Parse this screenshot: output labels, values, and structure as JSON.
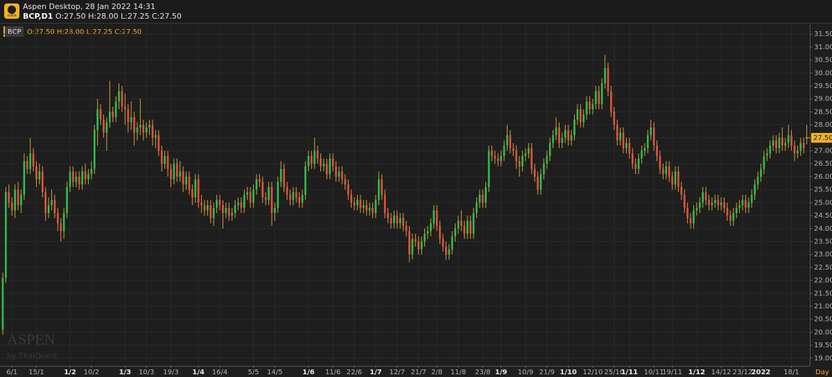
{
  "app_title": "Aspen Desktop, 28 Jan 2022 14:31",
  "symbol_header": "BCP,D1",
  "ohlc_header": "O:27.50 H:28.00 L:27.25 C:27.50",
  "logo_text": "ASPEN",
  "watermark": {
    "brand": "ASPEN",
    "sub": "by ThaiQuest"
  },
  "chart_data": {
    "type": "candlestick",
    "legend": {
      "symbol": "BCP",
      "ohlc": "O:27.50 H:28.00 L:27.25 C:27.50"
    },
    "last_price": {
      "value": 27.5,
      "label": "27.50"
    },
    "period": "Day",
    "up_color": "#2fbf4a",
    "down_color": "#e5533f",
    "wick_color": "#d8a43a",
    "grid": true,
    "ylim": [
      18.7,
      31.8
    ],
    "yticks": [
      {
        "value": 19,
        "label": "19.00"
      },
      {
        "value": 19.5,
        "label": "19.50"
      },
      {
        "value": 20,
        "label": "20.00"
      },
      {
        "value": 20.5,
        "label": "20.50"
      },
      {
        "value": 21,
        "label": "21.00"
      },
      {
        "value": 21.5,
        "label": "21.50"
      },
      {
        "value": 22,
        "label": "22.00"
      },
      {
        "value": 22.5,
        "label": "22.50"
      },
      {
        "value": 23,
        "label": "23.00"
      },
      {
        "value": 23.5,
        "label": "23.50"
      },
      {
        "value": 24,
        "label": "24.00"
      },
      {
        "value": 24.5,
        "label": "24.50"
      },
      {
        "value": 25,
        "label": "25.00"
      },
      {
        "value": 25.5,
        "label": "25.50"
      },
      {
        "value": 26,
        "label": "26.00"
      },
      {
        "value": 26.5,
        "label": "26.50"
      },
      {
        "value": 27,
        "label": "27.00"
      },
      {
        "value": 27.5,
        "label": "27.50"
      },
      {
        "value": 28,
        "label": "28.00"
      },
      {
        "value": 28.5,
        "label": "28.50"
      },
      {
        "value": 29,
        "label": "29.00"
      },
      {
        "value": 29.5,
        "label": "29.50"
      },
      {
        "value": 30,
        "label": "30.00"
      },
      {
        "value": 30.5,
        "label": "30.50"
      },
      {
        "value": 31,
        "label": "31.00"
      },
      {
        "value": 31.5,
        "label": "31.50"
      }
    ],
    "categories": [
      null,
      null,
      null,
      "6/1",
      null,
      null,
      null,
      null,
      null,
      null,
      null,
      "15/1",
      null,
      null,
      null,
      null,
      null,
      null,
      null,
      null,
      null,
      null,
      "1/2",
      null,
      null,
      null,
      null,
      null,
      null,
      "10/2",
      null,
      null,
      null,
      null,
      null,
      null,
      null,
      null,
      null,
      null,
      "1/3",
      null,
      null,
      null,
      null,
      null,
      null,
      "10/3",
      null,
      null,
      null,
      null,
      null,
      null,
      null,
      "19/3",
      null,
      null,
      null,
      null,
      null,
      null,
      null,
      null,
      "1/4",
      null,
      null,
      null,
      null,
      null,
      null,
      "16/4",
      null,
      null,
      null,
      null,
      null,
      null,
      null,
      null,
      null,
      null,
      "5/5",
      null,
      null,
      null,
      null,
      null,
      null,
      "14/5",
      null,
      null,
      null,
      null,
      null,
      null,
      null,
      null,
      null,
      null,
      "1/6",
      null,
      null,
      null,
      null,
      null,
      null,
      null,
      "11/6",
      null,
      null,
      null,
      null,
      null,
      null,
      "22/6",
      null,
      null,
      null,
      null,
      null,
      null,
      "1/7",
      null,
      null,
      null,
      null,
      null,
      null,
      "12/7",
      null,
      null,
      null,
      null,
      null,
      null,
      "21/7",
      null,
      null,
      null,
      null,
      null,
      "2/8",
      null,
      null,
      null,
      null,
      null,
      null,
      "11/8",
      null,
      null,
      null,
      null,
      null,
      null,
      null,
      "23/8",
      null,
      null,
      null,
      null,
      null,
      "1/9",
      null,
      null,
      null,
      null,
      null,
      null,
      null,
      "10/9",
      null,
      null,
      null,
      null,
      null,
      null,
      "21/9",
      null,
      null,
      null,
      null,
      null,
      null,
      "1/10",
      null,
      null,
      null,
      null,
      null,
      null,
      null,
      "12/10",
      null,
      null,
      null,
      null,
      null,
      null,
      "25/10",
      null,
      null,
      null,
      null,
      "1/11",
      null,
      null,
      null,
      null,
      null,
      null,
      null,
      "10/11",
      null,
      null,
      null,
      null,
      null,
      "19/11",
      null,
      null,
      null,
      null,
      null,
      null,
      null,
      "1/12",
      null,
      null,
      null,
      null,
      null,
      null,
      null,
      "14/12",
      null,
      null,
      null,
      null,
      null,
      null,
      "23/12",
      null,
      null,
      null,
      null,
      null,
      "2022",
      null,
      null,
      null,
      null,
      null,
      null,
      null,
      null,
      null,
      "18/1",
      null,
      null,
      null,
      null,
      null
    ],
    "open": [
      20.1,
      22.1,
      25.4,
      25.0,
      24.7,
      25.5,
      24.9,
      25.3,
      26.6,
      26.3,
      26.9,
      26.4,
      25.9,
      26.2,
      25.4,
      24.6,
      24.9,
      25.1,
      24.6,
      24.2,
      23.9,
      24.6,
      25.6,
      26.2,
      25.8,
      26.0,
      25.7,
      26.2,
      25.9,
      26.1,
      26.3,
      27.8,
      28.6,
      28.2,
      27.7,
      28.1,
      28.5,
      28.3,
      28.9,
      29.3,
      28.7,
      28.6,
      28.1,
      28.3,
      27.7,
      27.9,
      28.0,
      27.7,
      27.9,
      28.0,
      27.5,
      27.6,
      27.0,
      26.5,
      26.8,
      26.3,
      25.9,
      26.5,
      26.0,
      26.2,
      25.7,
      26.0,
      25.5,
      25.2,
      25.9,
      25.0,
      24.9,
      24.7,
      24.9,
      24.4,
      24.8,
      25.1,
      24.9,
      24.6,
      24.8,
      24.5,
      24.6,
      24.9,
      25.0,
      24.8,
      25.3,
      25.4,
      25.0,
      25.5,
      25.9,
      25.8,
      25.2,
      25.1,
      25.6,
      24.6,
      24.8,
      25.8,
      26.3,
      25.6,
      25.3,
      25.1,
      25.4,
      25.2,
      25.0,
      25.3,
      26.4,
      26.8,
      26.5,
      27.0,
      26.7,
      26.4,
      26.5,
      26.1,
      26.7,
      26.4,
      26.0,
      26.2,
      25.9,
      25.7,
      25.3,
      25.0,
      24.9,
      25.1,
      24.8,
      24.9,
      24.7,
      24.8,
      24.6,
      25.1,
      25.9,
      25.3,
      24.6,
      24.4,
      24.2,
      24.5,
      24.2,
      24.4,
      24.1,
      23.9,
      23.0,
      23.6,
      23.5,
      23.2,
      23.5,
      23.8,
      23.9,
      24.2,
      24.7,
      24.1,
      23.6,
      23.3,
      23.0,
      23.2,
      23.7,
      24.0,
      24.3,
      24.1,
      23.8,
      24.3,
      23.8,
      24.6,
      25.0,
      25.3,
      25.0,
      25.6,
      27.0,
      26.8,
      26.7,
      26.6,
      26.8,
      27.2,
      27.6,
      27.1,
      27.0,
      26.6,
      26.4,
      26.8,
      26.9,
      27.1,
      26.3,
      26.0,
      25.5,
      26.1,
      26.5,
      26.8,
      27.3,
      27.6,
      27.9,
      27.3,
      27.5,
      27.8,
      27.4,
      27.6,
      28.2,
      28.6,
      28.1,
      28.4,
      28.9,
      28.6,
      28.8,
      29.3,
      28.8,
      29.6,
      30.2,
      29.3,
      28.5,
      28.0,
      27.4,
      27.7,
      27.1,
      27.3,
      26.9,
      26.5,
      26.3,
      26.7,
      27.0,
      27.1,
      27.6,
      27.9,
      27.2,
      26.8,
      26.3,
      26.1,
      26.4,
      26.0,
      25.7,
      26.2,
      25.6,
      25.3,
      24.8,
      24.4,
      24.2,
      24.7,
      24.8,
      25.0,
      25.4,
      25.1,
      24.9,
      25.0,
      25.1,
      24.9,
      25.0,
      24.8,
      24.5,
      24.3,
      24.6,
      24.8,
      24.9,
      25.1,
      24.8,
      25.0,
      25.3,
      25.7,
      26.0,
      26.3,
      26.8,
      26.9,
      27.2,
      27.4,
      27.1,
      27.5,
      27.2,
      27.3,
      27.6,
      27.2,
      26.9,
      27.0,
      27.3,
      27.5
    ],
    "high": [
      22.3,
      25.6,
      25.7,
      25.2,
      25.7,
      25.8,
      25.5,
      26.9,
      26.8,
      27.5,
      27.1,
      26.6,
      26.5,
      26.4,
      25.6,
      25.2,
      25.5,
      25.3,
      24.8,
      24.4,
      24.8,
      25.8,
      26.4,
      26.4,
      26.2,
      26.2,
      26.4,
      26.5,
      26.3,
      26.6,
      28.0,
      29.0,
      28.8,
      28.4,
      28.3,
      29.7,
      28.7,
      29.1,
      29.6,
      29.5,
      29.2,
      28.8,
      28.9,
      28.5,
      28.1,
      29.0,
      28.2,
      28.1,
      28.2,
      28.2,
      27.8,
      27.8,
      27.2,
      27.0,
      27.0,
      26.5,
      26.7,
      26.7,
      26.6,
      26.4,
      26.2,
      26.2,
      25.7,
      26.1,
      26.1,
      25.3,
      25.1,
      25.1,
      25.1,
      25.0,
      25.3,
      25.3,
      25.1,
      25.0,
      25.0,
      24.8,
      25.1,
      25.2,
      25.2,
      25.5,
      25.6,
      25.6,
      25.7,
      26.1,
      26.1,
      26.0,
      25.4,
      25.8,
      25.8,
      25.0,
      26.0,
      26.6,
      26.5,
      25.8,
      25.5,
      25.6,
      25.6,
      25.4,
      25.5,
      26.6,
      27.0,
      27.0,
      27.5,
      27.2,
      26.9,
      26.7,
      26.7,
      26.9,
      26.9,
      26.6,
      26.4,
      26.4,
      26.1,
      25.9,
      25.5,
      25.2,
      25.3,
      25.3,
      25.1,
      25.1,
      25.0,
      25.0,
      25.3,
      26.2,
      26.1,
      25.5,
      24.8,
      24.6,
      24.7,
      24.7,
      24.6,
      24.6,
      24.3,
      24.1,
      23.8,
      23.8,
      23.7,
      23.7,
      24.0,
      24.1,
      24.4,
      24.9,
      24.9,
      24.3,
      23.8,
      23.5,
      23.4,
      23.9,
      24.2,
      24.5,
      24.7,
      24.3,
      24.5,
      24.5,
      24.8,
      25.2,
      25.5,
      25.5,
      25.8,
      27.2,
      27.2,
      27.0,
      26.9,
      27.0,
      27.4,
      28.0,
      27.8,
      27.3,
      27.2,
      26.8,
      27.0,
      27.1,
      27.3,
      27.3,
      26.5,
      26.2,
      26.3,
      26.7,
      27.0,
      27.5,
      27.8,
      28.3,
      28.1,
      27.7,
      28.0,
      28.0,
      27.8,
      28.4,
      28.8,
      28.8,
      28.6,
      29.1,
      29.1,
      29.0,
      29.5,
      29.5,
      29.8,
      30.7,
      30.4,
      29.5,
      28.7,
      28.2,
      27.9,
      27.9,
      27.5,
      27.5,
      27.1,
      26.7,
      26.9,
      27.2,
      27.3,
      27.8,
      28.2,
      28.1,
      27.4,
      27.0,
      26.5,
      26.6,
      26.6,
      26.2,
      26.4,
      26.4,
      25.8,
      25.5,
      25.0,
      24.6,
      24.9,
      25.0,
      25.2,
      25.6,
      25.6,
      25.3,
      25.2,
      25.3,
      25.3,
      25.2,
      25.2,
      25.0,
      24.7,
      24.8,
      25.0,
      25.1,
      25.3,
      25.3,
      25.2,
      25.5,
      25.9,
      26.2,
      26.5,
      27.0,
      27.1,
      27.4,
      27.6,
      27.6,
      27.7,
      27.9,
      27.5,
      28.0,
      27.8,
      27.4,
      27.2,
      27.5,
      27.5,
      28.0
    ],
    "low": [
      19.9,
      21.9,
      24.8,
      24.5,
      24.4,
      24.7,
      24.6,
      25.1,
      26.1,
      26.1,
      26.2,
      25.6,
      25.7,
      25.2,
      24.3,
      24.4,
      24.7,
      24.4,
      23.9,
      23.5,
      23.6,
      24.4,
      25.4,
      25.6,
      25.6,
      25.5,
      25.5,
      25.7,
      25.7,
      25.9,
      26.1,
      27.2,
      28.0,
      27.5,
      27.0,
      27.9,
      28.1,
      28.1,
      28.6,
      28.5,
      28.0,
      27.7,
      27.8,
      27.2,
      27.4,
      27.6,
      27.4,
      27.5,
      27.6,
      27.2,
      27.1,
      26.8,
      26.2,
      26.3,
      26.0,
      25.6,
      25.7,
      25.8,
      25.8,
      25.4,
      25.5,
      25.3,
      24.9,
      25.0,
      24.8,
      24.6,
      24.5,
      24.5,
      24.2,
      24.1,
      24.6,
      24.7,
      24.0,
      24.4,
      24.3,
      24.3,
      24.4,
      24.7,
      24.6,
      24.6,
      25.1,
      24.8,
      24.8,
      25.3,
      25.6,
      25.0,
      24.9,
      24.9,
      24.1,
      24.3,
      24.6,
      25.6,
      25.4,
      25.1,
      24.9,
      24.9,
      25.0,
      24.8,
      24.8,
      25.1,
      26.2,
      26.3,
      26.3,
      26.5,
      26.2,
      26.2,
      25.9,
      25.9,
      26.2,
      25.8,
      25.8,
      25.7,
      25.5,
      25.1,
      24.8,
      24.7,
      24.7,
      24.6,
      24.6,
      24.5,
      24.5,
      24.4,
      24.4,
      24.9,
      25.1,
      24.4,
      24.2,
      24.0,
      24.0,
      24.0,
      24.0,
      23.9,
      23.7,
      22.7,
      22.8,
      23.3,
      23.0,
      23.0,
      23.3,
      23.6,
      23.7,
      24.0,
      23.9,
      23.4,
      23.1,
      22.8,
      22.8,
      23.0,
      23.5,
      23.8,
      23.9,
      23.6,
      23.6,
      23.6,
      23.6,
      24.4,
      24.8,
      24.8,
      24.8,
      25.4,
      26.6,
      26.5,
      26.4,
      26.4,
      26.6,
      27.0,
      26.9,
      26.8,
      26.3,
      26.0,
      26.2,
      26.6,
      26.7,
      26.1,
      25.8,
      25.3,
      25.3,
      25.9,
      26.3,
      26.6,
      27.1,
      27.4,
      27.1,
      27.1,
      27.3,
      27.2,
      27.2,
      27.4,
      28.0,
      27.9,
      27.9,
      28.2,
      28.4,
      28.4,
      28.6,
      28.6,
      28.6,
      29.4,
      29.1,
      28.3,
      27.8,
      27.2,
      27.2,
      26.9,
      26.9,
      26.7,
      26.3,
      26.1,
      26.1,
      26.5,
      26.8,
      26.9,
      27.4,
      27.0,
      26.6,
      26.1,
      25.9,
      25.9,
      25.8,
      25.5,
      25.5,
      25.4,
      25.1,
      24.6,
      24.2,
      24.0,
      24.0,
      24.5,
      24.6,
      24.8,
      24.9,
      24.7,
      24.7,
      24.8,
      24.7,
      24.7,
      24.6,
      24.3,
      24.1,
      24.1,
      24.4,
      24.6,
      24.7,
      24.6,
      24.6,
      24.8,
      25.1,
      25.5,
      25.8,
      26.1,
      26.6,
      26.7,
      27.0,
      26.9,
      26.9,
      27.0,
      27.0,
      27.1,
      27.0,
      26.6,
      26.7,
      26.8,
      26.9,
      27.25
    ],
    "close": [
      22.1,
      25.4,
      25.0,
      24.7,
      25.5,
      24.9,
      25.3,
      26.6,
      26.3,
      26.9,
      26.4,
      25.9,
      26.2,
      25.4,
      24.6,
      24.9,
      25.1,
      24.6,
      24.2,
      23.9,
      24.6,
      25.6,
      26.2,
      25.8,
      26.0,
      25.7,
      26.2,
      25.9,
      26.1,
      26.3,
      27.8,
      28.6,
      28.2,
      27.7,
      28.1,
      28.5,
      28.3,
      28.9,
      29.3,
      28.7,
      28.6,
      28.1,
      28.3,
      27.7,
      27.9,
      28.0,
      27.7,
      27.9,
      28.0,
      27.5,
      27.6,
      27.0,
      26.5,
      26.8,
      26.3,
      25.9,
      26.5,
      26.0,
      26.2,
      25.7,
      26.0,
      25.5,
      25.2,
      25.9,
      25.0,
      24.9,
      24.7,
      24.9,
      24.4,
      24.8,
      25.1,
      24.9,
      24.6,
      24.8,
      24.5,
      24.6,
      24.9,
      25.0,
      24.8,
      25.3,
      25.4,
      25.0,
      25.5,
      25.9,
      25.8,
      25.2,
      25.1,
      25.6,
      24.6,
      24.8,
      25.8,
      26.3,
      25.6,
      25.3,
      25.1,
      25.4,
      25.2,
      25.0,
      25.3,
      26.4,
      26.8,
      26.5,
      27.0,
      26.7,
      26.4,
      26.5,
      26.1,
      26.7,
      26.4,
      26.0,
      26.2,
      25.9,
      25.7,
      25.3,
      25.0,
      24.9,
      25.1,
      24.8,
      24.9,
      24.7,
      24.8,
      24.6,
      25.1,
      25.9,
      25.3,
      24.6,
      24.4,
      24.2,
      24.5,
      24.2,
      24.4,
      24.1,
      23.9,
      23.0,
      23.6,
      23.5,
      23.2,
      23.5,
      23.8,
      23.9,
      24.2,
      24.7,
      24.1,
      23.6,
      23.3,
      23.0,
      23.2,
      23.7,
      24.0,
      24.3,
      24.1,
      23.8,
      24.3,
      23.8,
      24.6,
      25.0,
      25.3,
      25.0,
      25.6,
      27.0,
      26.8,
      26.7,
      26.6,
      26.8,
      27.2,
      27.6,
      27.1,
      27.0,
      26.6,
      26.4,
      26.8,
      26.9,
      27.1,
      26.3,
      26.0,
      25.5,
      26.1,
      26.5,
      26.8,
      27.3,
      27.6,
      27.9,
      27.3,
      27.5,
      27.8,
      27.4,
      27.6,
      28.2,
      28.6,
      28.1,
      28.4,
      28.9,
      28.6,
      28.8,
      29.3,
      28.8,
      29.6,
      30.2,
      29.3,
      28.5,
      28.0,
      27.4,
      27.7,
      27.1,
      27.3,
      26.9,
      26.5,
      26.3,
      26.7,
      27.0,
      27.1,
      27.6,
      27.9,
      27.2,
      26.8,
      26.3,
      26.1,
      26.4,
      26.0,
      25.7,
      26.2,
      25.6,
      25.3,
      24.8,
      24.4,
      24.2,
      24.7,
      24.8,
      25.0,
      25.4,
      25.1,
      24.9,
      25.0,
      25.1,
      24.9,
      25.0,
      24.8,
      24.5,
      24.3,
      24.6,
      24.8,
      24.9,
      25.1,
      24.8,
      25.0,
      25.3,
      25.7,
      26.0,
      26.3,
      26.8,
      26.9,
      27.2,
      27.4,
      27.1,
      27.5,
      27.2,
      27.3,
      27.6,
      27.2,
      26.9,
      27.0,
      27.3,
      27.1,
      27.5
    ]
  }
}
